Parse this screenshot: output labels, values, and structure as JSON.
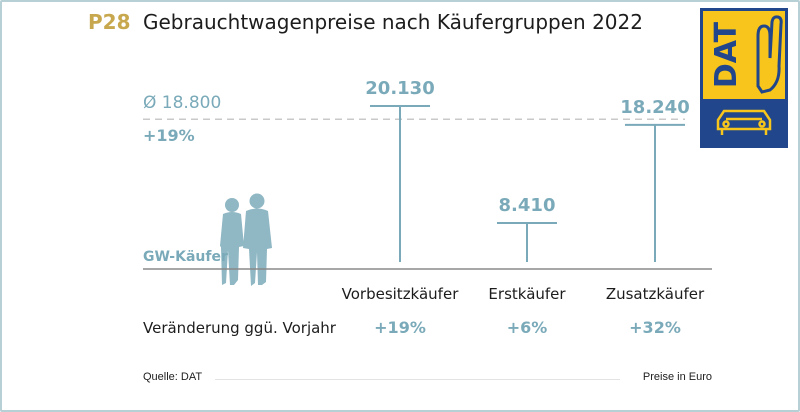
{
  "header": {
    "code": "P28",
    "title": "Gebrauchtwagenpreise nach Käufergruppen 2022"
  },
  "average": {
    "label": "Ø  18.800",
    "change": "+19%"
  },
  "baseline_label": "GW-Käufer",
  "change_row_label": "Veränderung ggü. Vorjahr",
  "footer": {
    "source": "Quelle: DAT",
    "units": "Preise in Euro"
  },
  "logo": {
    "text": "DAT"
  },
  "colors": {
    "accent": "#7aaab9",
    "code": "#c8a84e",
    "logo_yellow": "#f7c51b",
    "logo_blue": "#21468b"
  },
  "chart_data": {
    "type": "bar",
    "categories": [
      "Vorbesitzkäufer",
      "Erstkäufer",
      "Zusatzkäufer"
    ],
    "values": [
      20130,
      8410,
      18240
    ],
    "value_labels": [
      "20.130",
      "8.410",
      "18.240"
    ],
    "changes": [
      "+19%",
      "+6%",
      "+32%"
    ],
    "average": 18800,
    "ylim": [
      0,
      20130
    ]
  }
}
